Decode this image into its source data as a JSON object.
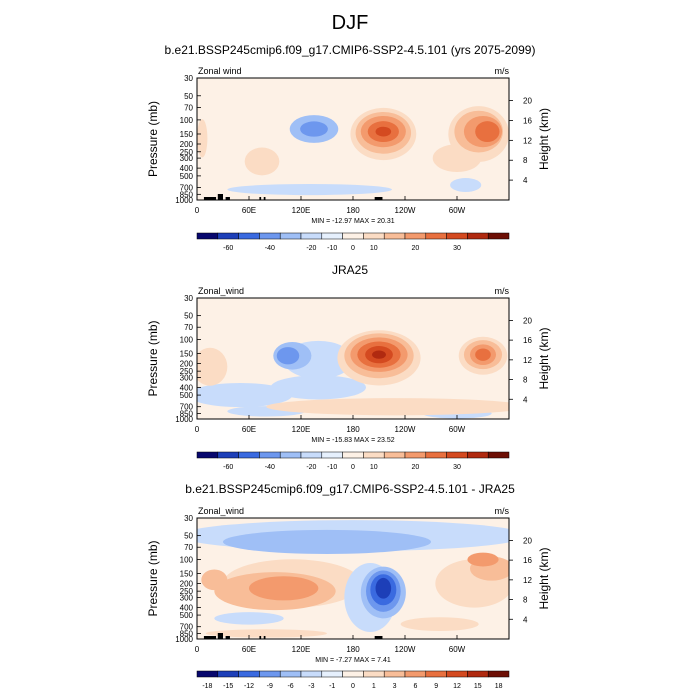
{
  "page": {
    "title": "DJF"
  },
  "chart_data": [
    {
      "type": "heatmap",
      "title": "b.e21.BSSP245cmip6.f09_g17.CMIP6-SSP2-4.5.101 (yrs 2075-2099)",
      "field_label": "Zonal wind",
      "units_label": "m/s",
      "ylabel_left": "Pressure (mb)",
      "ylabel_right": "Height (km)",
      "xticks": [
        "0",
        "60E",
        "120E",
        "180",
        "120W",
        "60W"
      ],
      "pressure_ticks": [
        "30",
        "50",
        "70",
        "100",
        "150",
        "200",
        "250",
        "300",
        "400",
        "500",
        "700",
        "850",
        "1000"
      ],
      "height_ticks": [
        "20",
        "16",
        "12",
        "8",
        "4"
      ],
      "stats": "MIN = -12.97  MAX =  20.31",
      "colorbar_labels": [
        "-60",
        "-40",
        "-20",
        "-10",
        "0",
        "10",
        "20",
        "30"
      ],
      "colorbar_colors": [
        "#08086e",
        "#1d3fb8",
        "#3a6ae0",
        "#6d97ee",
        "#9fbff6",
        "#c8dcfb",
        "#e6f0fd",
        "#fdf1e6",
        "#fbdcc4",
        "#f8bd98",
        "#f39a6d",
        "#e8703f",
        "#d44a20",
        "#b02a10",
        "#6d0f05"
      ],
      "blobs": [
        {
          "lon": 6,
          "p": 170,
          "rx": 6,
          "ry": 0.55,
          "level": 1
        },
        {
          "lon": 75,
          "p": 330,
          "rx": 20,
          "ry": 0.4,
          "level": 1
        },
        {
          "lon": 300,
          "p": 300,
          "rx": 28,
          "ry": 0.4,
          "level": 1
        },
        {
          "lon": 135,
          "p": 130,
          "rx": 28,
          "ry": 0.4,
          "level": -2
        },
        {
          "lon": 135,
          "p": 130,
          "rx": 16,
          "ry": 0.22,
          "level": -3
        },
        {
          "lon": 130,
          "p": 740,
          "rx": 95,
          "ry": 0.16,
          "level": -1
        },
        {
          "lon": 310,
          "p": 650,
          "rx": 18,
          "ry": 0.2,
          "level": -1
        },
        {
          "lon": 215,
          "p": 150,
          "rx": 38,
          "ry": 0.75,
          "level": 1
        },
        {
          "lon": 215,
          "p": 145,
          "rx": 32,
          "ry": 0.6,
          "level": 2
        },
        {
          "lon": 215,
          "p": 140,
          "rx": 26,
          "ry": 0.45,
          "level": 3
        },
        {
          "lon": 215,
          "p": 140,
          "rx": 18,
          "ry": 0.3,
          "level": 4
        },
        {
          "lon": 215,
          "p": 140,
          "rx": 9,
          "ry": 0.14,
          "level": 5
        },
        {
          "lon": 325,
          "p": 150,
          "rx": 35,
          "ry": 0.8,
          "level": 1
        },
        {
          "lon": 325,
          "p": 140,
          "rx": 28,
          "ry": 0.6,
          "level": 2
        },
        {
          "lon": 330,
          "p": 140,
          "rx": 22,
          "ry": 0.45,
          "level": 3
        },
        {
          "lon": 335,
          "p": 140,
          "rx": 14,
          "ry": 0.3,
          "level": 4
        }
      ]
    },
    {
      "type": "heatmap",
      "title": "JRA25",
      "field_label": "Zonal_wind",
      "units_label": "m/s",
      "ylabel_left": "Pressure (mb)",
      "ylabel_right": "Height (km)",
      "xticks": [
        "0",
        "60E",
        "120E",
        "180",
        "120W",
        "60W"
      ],
      "pressure_ticks": [
        "30",
        "50",
        "70",
        "100",
        "150",
        "200",
        "250",
        "300",
        "400",
        "500",
        "700",
        "850",
        "1000"
      ],
      "height_ticks": [
        "20",
        "16",
        "12",
        "8",
        "4"
      ],
      "stats": "MIN = -15.83  MAX =  23.52",
      "colorbar_labels": [
        "-60",
        "-40",
        "-20",
        "-10",
        "0",
        "10",
        "20",
        "30"
      ],
      "colorbar_colors": [
        "#08086e",
        "#1d3fb8",
        "#3a6ae0",
        "#6d97ee",
        "#9fbff6",
        "#c8dcfb",
        "#e6f0fd",
        "#fdf1e6",
        "#fbdcc4",
        "#f8bd98",
        "#f39a6d",
        "#e8703f",
        "#d44a20",
        "#b02a10",
        "#6d0f05"
      ],
      "blobs": [
        {
          "lon": 50,
          "p": 500,
          "rx": 60,
          "ry": 0.35,
          "level": -1
        },
        {
          "lon": 140,
          "p": 180,
          "rx": 40,
          "ry": 0.55,
          "level": -1
        },
        {
          "lon": 140,
          "p": 400,
          "rx": 55,
          "ry": 0.35,
          "level": -1
        },
        {
          "lon": 110,
          "p": 160,
          "rx": 22,
          "ry": 0.4,
          "level": -2
        },
        {
          "lon": 105,
          "p": 160,
          "rx": 13,
          "ry": 0.25,
          "level": -3
        },
        {
          "lon": 80,
          "p": 800,
          "rx": 45,
          "ry": 0.15,
          "level": -1
        },
        {
          "lon": 300,
          "p": 850,
          "rx": 40,
          "ry": 0.15,
          "level": -1
        },
        {
          "lon": 15,
          "p": 220,
          "rx": 20,
          "ry": 0.55,
          "level": 1
        },
        {
          "lon": 230,
          "p": 700,
          "rx": 150,
          "ry": 0.25,
          "level": 1
        },
        {
          "lon": 210,
          "p": 170,
          "rx": 48,
          "ry": 0.8,
          "level": 1
        },
        {
          "lon": 210,
          "p": 160,
          "rx": 40,
          "ry": 0.65,
          "level": 2
        },
        {
          "lon": 210,
          "p": 155,
          "rx": 33,
          "ry": 0.5,
          "level": 3
        },
        {
          "lon": 210,
          "p": 155,
          "rx": 25,
          "ry": 0.38,
          "level": 4
        },
        {
          "lon": 210,
          "p": 155,
          "rx": 16,
          "ry": 0.25,
          "level": 5
        },
        {
          "lon": 210,
          "p": 155,
          "rx": 8,
          "ry": 0.12,
          "level": 6
        },
        {
          "lon": 330,
          "p": 160,
          "rx": 28,
          "ry": 0.55,
          "level": 1
        },
        {
          "lon": 330,
          "p": 155,
          "rx": 22,
          "ry": 0.42,
          "level": 2
        },
        {
          "lon": 330,
          "p": 155,
          "rx": 15,
          "ry": 0.3,
          "level": 3
        },
        {
          "lon": 330,
          "p": 155,
          "rx": 9,
          "ry": 0.18,
          "level": 4
        }
      ]
    },
    {
      "type": "heatmap",
      "title": "b.e21.BSSP245cmip6.f09_g17.CMIP6-SSP2-4.5.101 - JRA25",
      "field_label": "Zonal_wind",
      "units_label": "m/s",
      "ylabel_left": "Pressure (mb)",
      "ylabel_right": "Height (km)",
      "xticks": [
        "0",
        "60E",
        "120E",
        "180",
        "120W",
        "60W"
      ],
      "pressure_ticks": [
        "30",
        "50",
        "70",
        "100",
        "150",
        "200",
        "250",
        "300",
        "400",
        "500",
        "700",
        "850",
        "1000"
      ],
      "height_ticks": [
        "20",
        "16",
        "12",
        "8",
        "4"
      ],
      "stats": "MIN = -7.27  MAX =  7.41",
      "colorbar_labels": [
        "-18",
        "-15",
        "-12",
        "-9",
        "-6",
        "-3",
        "-1",
        "0",
        "1",
        "3",
        "6",
        "9",
        "12",
        "15",
        "18"
      ],
      "colorbar_colors": [
        "#08086e",
        "#1d3fb8",
        "#3a6ae0",
        "#6d97ee",
        "#9fbff6",
        "#c8dcfb",
        "#e6f0fd",
        "#fdf1e6",
        "#fbdcc4",
        "#f8bd98",
        "#f39a6d",
        "#e8703f",
        "#d44a20",
        "#b02a10",
        "#6d0f05"
      ],
      "blobs": [
        {
          "lon": 180,
          "p": 50,
          "rx": 200,
          "ry": 0.45,
          "level": -1
        },
        {
          "lon": 150,
          "p": 60,
          "rx": 120,
          "ry": 0.35,
          "level": -2
        },
        {
          "lon": 110,
          "p": 200,
          "rx": 80,
          "ry": 0.7,
          "level": 1
        },
        {
          "lon": 90,
          "p": 250,
          "rx": 70,
          "ry": 0.55,
          "level": 2
        },
        {
          "lon": 100,
          "p": 230,
          "rx": 40,
          "ry": 0.35,
          "level": 3
        },
        {
          "lon": 20,
          "p": 180,
          "rx": 15,
          "ry": 0.3,
          "level": 2
        },
        {
          "lon": 320,
          "p": 200,
          "rx": 45,
          "ry": 0.7,
          "level": 1
        },
        {
          "lon": 340,
          "p": 130,
          "rx": 25,
          "ry": 0.35,
          "level": 2
        },
        {
          "lon": 330,
          "p": 100,
          "rx": 18,
          "ry": 0.2,
          "level": 3
        },
        {
          "lon": 200,
          "p": 300,
          "rx": 30,
          "ry": 1.0,
          "level": -1
        },
        {
          "lon": 215,
          "p": 260,
          "rx": 26,
          "ry": 0.75,
          "level": -2
        },
        {
          "lon": 215,
          "p": 250,
          "rx": 20,
          "ry": 0.6,
          "level": -3
        },
        {
          "lon": 215,
          "p": 240,
          "rx": 15,
          "ry": 0.45,
          "level": -4
        },
        {
          "lon": 215,
          "p": 230,
          "rx": 9,
          "ry": 0.3,
          "level": -5
        },
        {
          "lon": 60,
          "p": 550,
          "rx": 40,
          "ry": 0.18,
          "level": -1
        },
        {
          "lon": 280,
          "p": 650,
          "rx": 45,
          "ry": 0.2,
          "level": 1
        },
        {
          "lon": 80,
          "p": 850,
          "rx": 70,
          "ry": 0.12,
          "level": 1
        }
      ]
    }
  ]
}
